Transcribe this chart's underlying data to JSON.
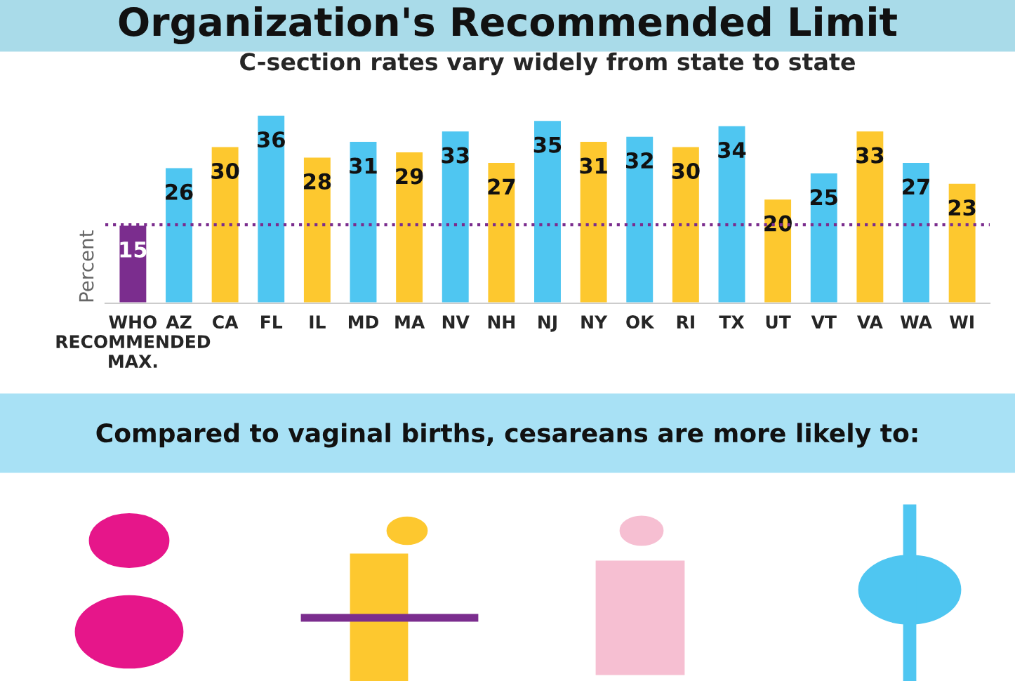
{
  "chart_data": {
    "type": "bar",
    "title": "C-section rates vary widely from state to state",
    "ylabel": "Percent",
    "categories": [
      "WHO\nRECOMMENDED\nMAX.",
      "AZ",
      "CA",
      "FL",
      "IL",
      "MD",
      "MA",
      "NV",
      "NH",
      "NJ",
      "NY",
      "OK",
      "RI",
      "TX",
      "UT",
      "VT",
      "VA",
      "WA",
      "WI"
    ],
    "values": [
      15,
      26,
      30,
      36,
      28,
      31,
      29,
      33,
      27,
      35,
      31,
      32,
      30,
      34,
      20,
      25,
      33,
      27,
      23
    ],
    "colors": [
      "#7b2d8e",
      "#4fc6f1",
      "#fdc82f",
      "#4fc6f1",
      "#fdc82f",
      "#4fc6f1",
      "#fdc82f",
      "#4fc6f1",
      "#fdc82f",
      "#4fc6f1",
      "#fdc82f",
      "#4fc6f1",
      "#fdc82f",
      "#4fc6f1",
      "#fdc82f",
      "#4fc6f1",
      "#fdc82f",
      "#4fc6f1",
      "#fdc82f"
    ],
    "data_labels": true,
    "tick_labels": "x",
    "grid": false,
    "ref_lines": [
      {
        "axis": "y",
        "value": 15,
        "color": "#7b2d8e",
        "line_style": "dotted"
      }
    ],
    "annotations": [
      "Organization's Recommended Limit",
      "Compared to vaginal births, cesareans are more likely to:"
    ]
  }
}
